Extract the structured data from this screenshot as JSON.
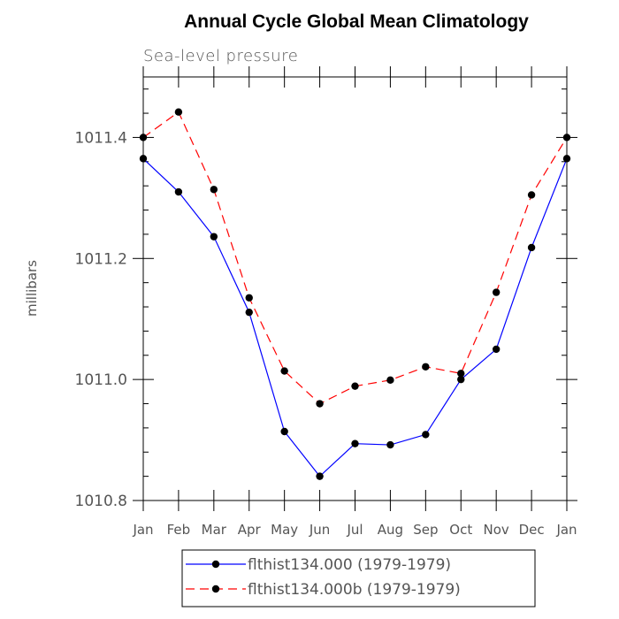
{
  "chart_data": {
    "type": "line",
    "title": "Annual Cycle Global Mean Climatology",
    "subtitle": "Sea-level pressure",
    "xlabel": "",
    "ylabel": "millibars",
    "ylim": [
      1010.8,
      1011.5
    ],
    "yticks": [
      "1010.8",
      "1011.0",
      "1011.2",
      "1011.4"
    ],
    "yticks_values": [
      1010.8,
      1011.0,
      1011.2,
      1011.4
    ],
    "categories": [
      "Jan",
      "Feb",
      "Mar",
      "Apr",
      "May",
      "Jun",
      "Jul",
      "Aug",
      "Sep",
      "Oct",
      "Nov",
      "Dec",
      "Jan"
    ],
    "grid": false,
    "legend_placement": "bottom",
    "series": [
      {
        "name": "flthist134.000 (1979-1979)",
        "color": "#0000ff",
        "dash": "solid",
        "values": [
          1011.365,
          1011.31,
          1011.236,
          1011.111,
          1010.914,
          1010.84,
          1010.894,
          1010.892,
          1010.909,
          1011.0,
          1011.05,
          1011.218,
          1011.365
        ]
      },
      {
        "name": "flthist134.000b (1979-1979)",
        "color": "#ff0000",
        "dash": "dashed",
        "values": [
          1011.4,
          1011.442,
          1011.314,
          1011.135,
          1011.014,
          1010.96,
          1010.989,
          1010.999,
          1011.021,
          1011.01,
          1011.144,
          1011.305,
          1011.4
        ]
      }
    ]
  }
}
